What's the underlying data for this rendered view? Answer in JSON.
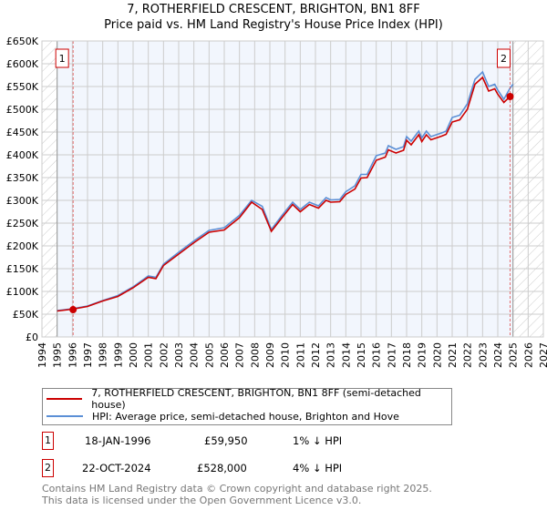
{
  "chart_data": {
    "type": "line",
    "title": "7, ROTHERFIELD CRESCENT, BRIGHTON, BN1 8FF",
    "subtitle": "Price paid vs. HM Land Registry's House Price Index (HPI)",
    "xlim": [
      1994,
      2027
    ],
    "ylim": [
      0,
      650000
    ],
    "yticks": [
      0,
      50000,
      100000,
      150000,
      200000,
      250000,
      300000,
      350000,
      400000,
      450000,
      500000,
      550000,
      600000,
      650000
    ],
    "ytick_labels": [
      "£0",
      "£50K",
      "£100K",
      "£150K",
      "£200K",
      "£250K",
      "£300K",
      "£350K",
      "£400K",
      "£450K",
      "£500K",
      "£550K",
      "£600K",
      "£650K"
    ],
    "xticks": [
      1994,
      1995,
      1996,
      1997,
      1998,
      1999,
      2000,
      2001,
      2002,
      2003,
      2004,
      2005,
      2006,
      2007,
      2008,
      2009,
      2010,
      2011,
      2012,
      2013,
      2014,
      2015,
      2016,
      2017,
      2018,
      2019,
      2020,
      2021,
      2022,
      2023,
      2024,
      2025,
      2026,
      2027
    ],
    "data_range": [
      1995,
      2025
    ],
    "grid": true,
    "series": [
      {
        "name": "7, ROTHERFIELD CRESCENT, BRIGHTON, BN1 8FF (semi-detached house)",
        "color": "#cc0000",
        "x": [
          1995,
          1996,
          1997,
          1998,
          1999,
          2000,
          2001,
          2001.5,
          2002,
          2003,
          2004,
          2005,
          2006,
          2007,
          2007.8,
          2008.5,
          2009.1,
          2009.8,
          2010.5,
          2011,
          2011.6,
          2012.2,
          2012.7,
          2013,
          2013.6,
          2014,
          2014.6,
          2015,
          2015.4,
          2016,
          2016.6,
          2016.8,
          2017.3,
          2017.8,
          2018,
          2018.3,
          2018.8,
          2019,
          2019.3,
          2019.6,
          2020.3,
          2020.6,
          2021,
          2021.5,
          2022,
          2022.5,
          2023,
          2023.4,
          2023.8,
          2024,
          2024.4,
          2024.8,
          2025
        ],
        "y": [
          57000,
          61000,
          67000,
          79000,
          89000,
          108000,
          131000,
          128000,
          157000,
          182000,
          207000,
          230000,
          235000,
          262000,
          296000,
          280000,
          232000,
          262000,
          291000,
          275000,
          291000,
          283000,
          300000,
          296000,
          297000,
          313000,
          325000,
          349000,
          350000,
          388000,
          395000,
          411000,
          404000,
          410000,
          432000,
          422000,
          444000,
          429000,
          444000,
          433000,
          441000,
          445000,
          472000,
          477000,
          500000,
          555000,
          570000,
          540000,
          545000,
          533000,
          515000,
          528000,
          528000
        ]
      },
      {
        "name": "HPI: Average price, semi-detached house, Brighton and Hove",
        "color": "#5b8fd6",
        "x": [
          1995,
          1996,
          1997,
          1998,
          1999,
          2000,
          2001,
          2001.5,
          2002,
          2003,
          2004,
          2005,
          2006,
          2007,
          2007.8,
          2008.5,
          2009.1,
          2009.8,
          2010.5,
          2011,
          2011.6,
          2012.2,
          2012.7,
          2013,
          2013.6,
          2014,
          2014.6,
          2015,
          2015.4,
          2016,
          2016.6,
          2016.8,
          2017.3,
          2017.8,
          2018,
          2018.3,
          2018.8,
          2019,
          2019.3,
          2019.6,
          2020.3,
          2020.6,
          2021,
          2021.5,
          2022,
          2022.5,
          2023,
          2023.4,
          2023.8,
          2024,
          2024.4,
          2024.8,
          2025
        ],
        "y": [
          58000,
          62000,
          68000,
          80000,
          91000,
          110000,
          134000,
          131000,
          160000,
          186000,
          211000,
          234000,
          240000,
          267000,
          300000,
          287000,
          236000,
          267000,
          296000,
          280000,
          296000,
          288000,
          306000,
          301000,
          302000,
          319000,
          332000,
          357000,
          357000,
          398000,
          404000,
          420000,
          412000,
          418000,
          440000,
          430000,
          452000,
          437000,
          452000,
          440000,
          448000,
          452000,
          482000,
          487000,
          512000,
          566000,
          582000,
          550000,
          555000,
          542000,
          522000,
          546000,
          555000
        ]
      }
    ],
    "sales": [
      {
        "label": "1",
        "date": "18-JAN-1996",
        "x": 1996.05,
        "price": "£59,950",
        "price_value": 59950,
        "hpi": "1% ↓ HPI"
      },
      {
        "label": "2",
        "date": "22-OCT-2024",
        "x": 2024.81,
        "price": "£528,000",
        "price_value": 528000,
        "hpi": "4% ↓ HPI"
      }
    ]
  },
  "footer": {
    "line1": "Contains HM Land Registry data © Crown copyright and database right 2025.",
    "line2": "This data is licensed under the Open Government Licence v3.0."
  }
}
